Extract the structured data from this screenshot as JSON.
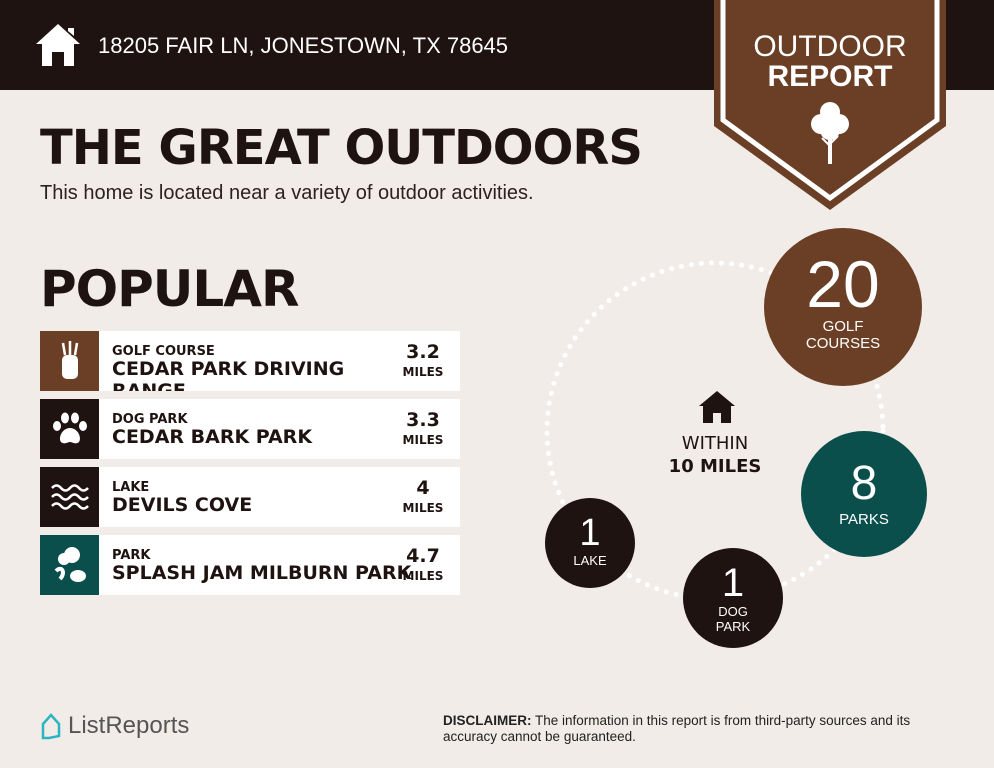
{
  "header": {
    "address": "18205 FAIR LN, JONESTOWN, TX 78645",
    "home_icon": "house-icon"
  },
  "banner": {
    "line1": "OUTDOOR",
    "line2": "REPORT",
    "icon": "tree-icon"
  },
  "title": "THE GREAT OUTDOORS",
  "subtitle": "This home is located near a variety of outdoor activities.",
  "popular": {
    "heading": "POPULAR",
    "items": [
      {
        "category": "GOLF COURSE",
        "name": "CEDAR PARK DRIVING RANGE",
        "distance": "3.2",
        "unit": "MILES",
        "icon": "golf-bag-icon",
        "color": "#6b3f25"
      },
      {
        "category": "DOG PARK",
        "name": "CEDAR BARK PARK",
        "distance": "3.3",
        "unit": "MILES",
        "icon": "paw-icon",
        "color": "#1e1310"
      },
      {
        "category": "LAKE",
        "name": "DEVILS COVE",
        "distance": "4",
        "unit": "MILES",
        "icon": "waves-icon",
        "color": "#1e1310"
      },
      {
        "category": "PARK",
        "name": "SPLASH JAM MILBURN PARK",
        "distance": "4.7",
        "unit": "MILES",
        "icon": "trees-icon",
        "color": "#0a4f4c"
      }
    ]
  },
  "summary": {
    "within_line1": "WITHIN",
    "within_line2": "10 MILES",
    "golf": {
      "count": "20",
      "label1": "GOLF",
      "label2": "COURSES",
      "color": "#6b3f25"
    },
    "parks": {
      "count": "8",
      "label1": "PARKS",
      "color": "#0a4f4c"
    },
    "lake": {
      "count": "1",
      "label1": "LAKE",
      "color": "#1e1310"
    },
    "dog": {
      "count": "1",
      "label1": "DOG",
      "label2": "PARK",
      "color": "#1e1310"
    }
  },
  "footer": {
    "logo": "ListReports",
    "disclaimer_label": "DISCLAIMER:",
    "disclaimer": " The information in this report is from third-party sources and its accuracy cannot be guaranteed."
  }
}
